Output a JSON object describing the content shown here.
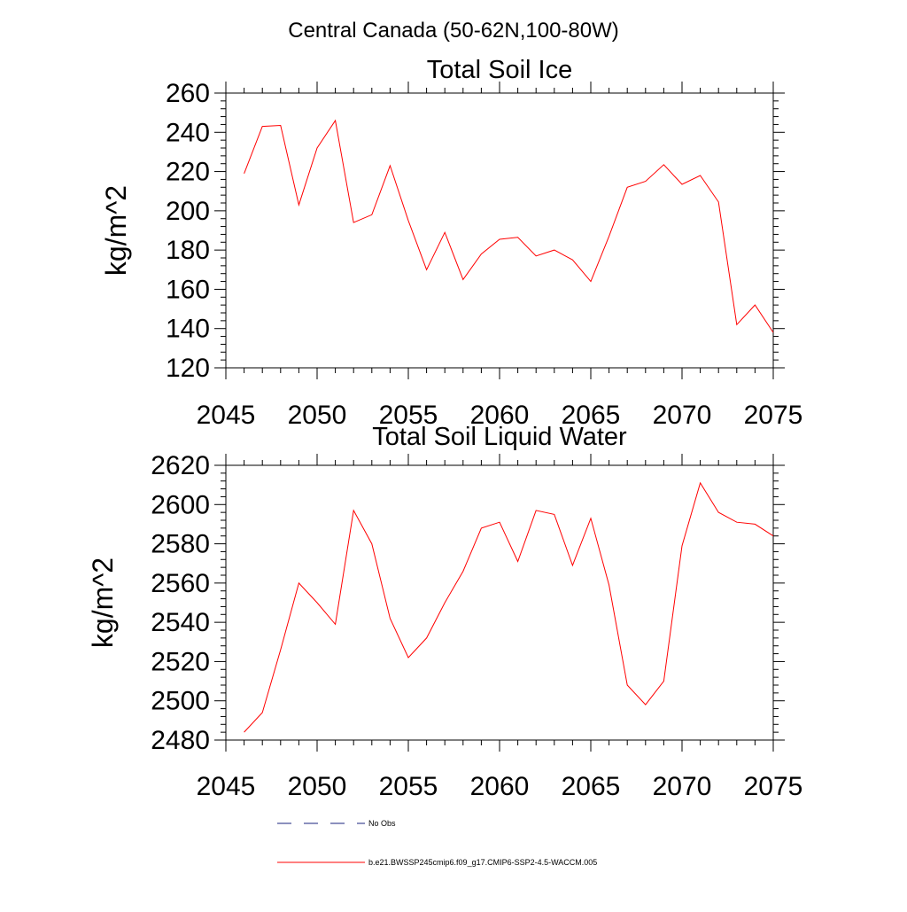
{
  "main_title": "Central Canada (50-62N,100-80W)",
  "legend": [
    {
      "label": "No Obs",
      "color": "#1a237e",
      "dash": true
    },
    {
      "label": "b.e21.BWSSP245cmip6.f09_g17.CMIP6-SSP2-4.5-WACCM.005",
      "color": "#ff0000",
      "dash": false
    }
  ],
  "chart_data": [
    {
      "type": "line",
      "title": "Total Soil Ice",
      "xlabel": "",
      "ylabel": "kg/m^2",
      "xlim": [
        2045,
        2075
      ],
      "ylim": [
        120,
        260
      ],
      "x_ticks": [
        2045,
        2050,
        2055,
        2060,
        2065,
        2070,
        2075
      ],
      "y_ticks": [
        120,
        140,
        160,
        180,
        200,
        220,
        240,
        260
      ],
      "x_minor_step": 1,
      "y_minor_step": 4,
      "series": [
        {
          "name": "b.e21.BWSSP245cmip6.f09_g17.CMIP6-SSP2-4.5-WACCM.005",
          "color": "#ff0000",
          "x": [
            2046,
            2047,
            2048,
            2049,
            2050,
            2051,
            2052,
            2053,
            2054,
            2055,
            2056,
            2057,
            2058,
            2059,
            2060,
            2061,
            2062,
            2063,
            2064,
            2065,
            2066,
            2067,
            2068,
            2069,
            2070,
            2071,
            2072,
            2073,
            2074,
            2075
          ],
          "values": [
            219,
            243,
            243.5,
            203,
            232,
            246,
            194,
            198,
            223,
            195,
            170,
            189,
            165,
            178,
            185.5,
            186.5,
            177,
            180,
            175,
            164,
            187,
            212,
            215,
            223.5,
            213.5,
            218,
            204.5,
            142,
            152,
            138
          ]
        }
      ]
    },
    {
      "type": "line",
      "title": "Total Soil Liquid Water",
      "xlabel": "",
      "ylabel": "kg/m^2",
      "xlim": [
        2045,
        2075
      ],
      "ylim": [
        2480,
        2620
      ],
      "x_ticks": [
        2045,
        2050,
        2055,
        2060,
        2065,
        2070,
        2075
      ],
      "y_ticks": [
        2480,
        2500,
        2520,
        2540,
        2560,
        2580,
        2600,
        2620
      ],
      "x_minor_step": 1,
      "y_minor_step": 4,
      "series": [
        {
          "name": "b.e21.BWSSP245cmip6.f09_g17.CMIP6-SSP2-4.5-WACCM.005",
          "color": "#ff0000",
          "x": [
            2046,
            2047,
            2048,
            2049,
            2050,
            2051,
            2052,
            2053,
            2054,
            2055,
            2056,
            2057,
            2058,
            2059,
            2060,
            2061,
            2062,
            2063,
            2064,
            2065,
            2066,
            2067,
            2068,
            2069,
            2070,
            2071,
            2072,
            2073,
            2074,
            2075
          ],
          "values": [
            2484,
            2494,
            2526,
            2560,
            2550,
            2539,
            2597,
            2580,
            2542,
            2522,
            2532,
            2550,
            2566,
            2588,
            2591,
            2571,
            2597,
            2595,
            2569,
            2593,
            2559,
            2508,
            2498,
            2510,
            2579,
            2611,
            2596,
            2591,
            2590,
            2584
          ]
        }
      ]
    }
  ]
}
